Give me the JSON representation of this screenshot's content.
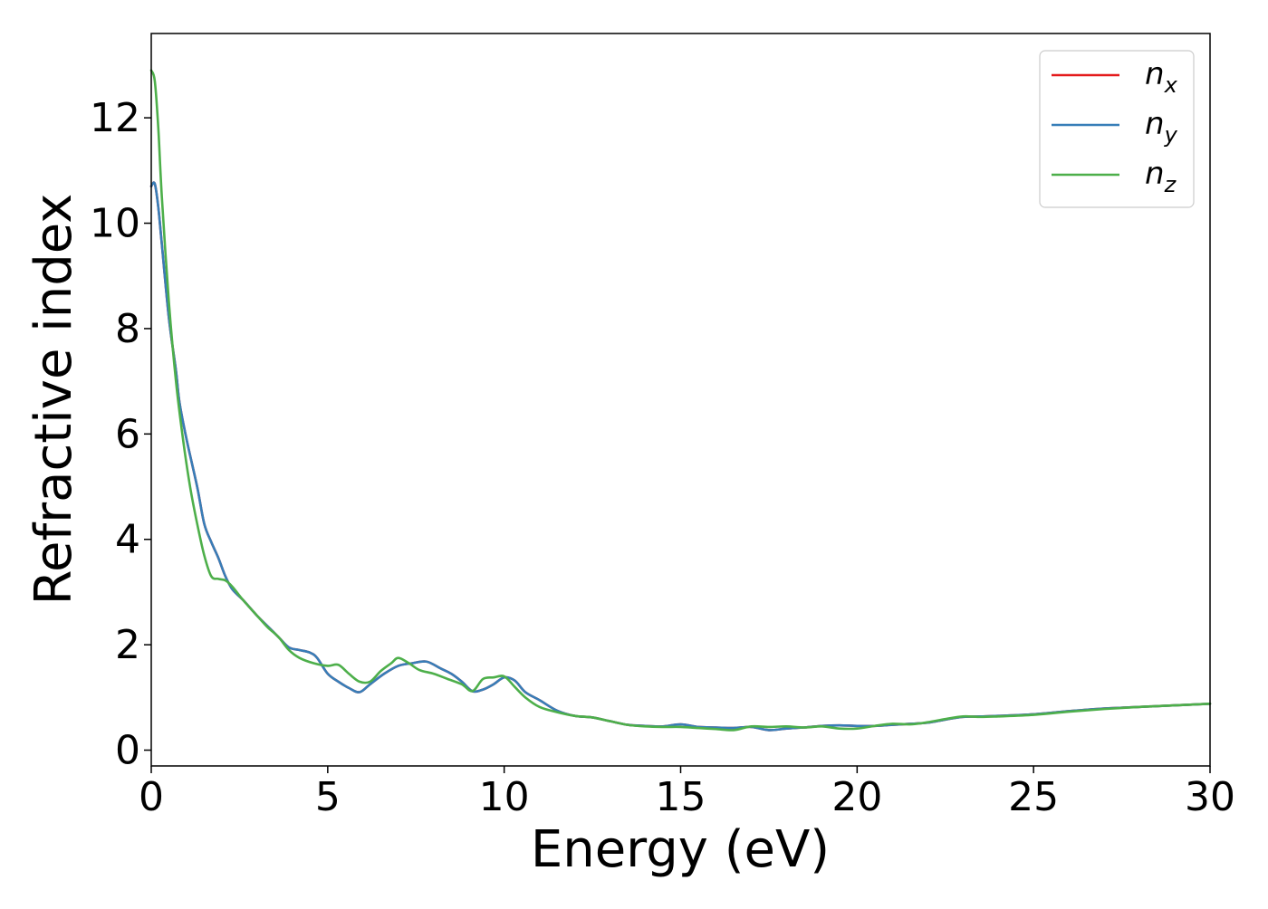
{
  "chart_data": {
    "type": "line",
    "title": "",
    "xlabel": "Energy (eV)",
    "ylabel": "Refractive index",
    "xlim": [
      0,
      30
    ],
    "ylim": [
      -0.3,
      13.6
    ],
    "xticks": [
      0,
      5,
      10,
      15,
      20,
      25,
      30
    ],
    "yticks": [
      0,
      2,
      4,
      6,
      8,
      10,
      12
    ],
    "grid": false,
    "legend_position": "top-right",
    "series": [
      {
        "name": "n_x",
        "legend_base": "n",
        "legend_sub": "x",
        "color": "#e41a1c",
        "x": [
          0,
          0.1,
          0.2,
          0.3,
          0.5,
          0.7,
          0.8,
          1.0,
          1.3,
          1.5,
          1.7,
          1.9,
          2.1,
          2.3,
          2.6,
          3.0,
          3.3,
          3.6,
          3.9,
          4.2,
          4.5,
          4.7,
          5.0,
          5.3,
          5.6,
          5.9,
          6.2,
          6.6,
          7.0,
          7.4,
          7.8,
          8.2,
          8.5,
          8.8,
          9.1,
          9.4,
          9.7,
          10.0,
          10.3,
          10.6,
          11.0,
          11.5,
          12.0,
          12.5,
          13.0,
          13.5,
          14.0,
          14.5,
          15.0,
          15.5,
          16.0,
          16.5,
          17.0,
          17.5,
          18.0,
          18.5,
          19.0,
          19.5,
          20.0,
          20.5,
          21.0,
          21.5,
          22.0,
          22.5,
          23.0,
          23.5,
          24.0,
          25.0,
          26.0,
          27.0,
          28.0,
          29.0,
          30.0
        ],
        "y": [
          10.7,
          10.75,
          10.3,
          9.6,
          8.2,
          7.2,
          6.6,
          5.9,
          5.0,
          4.3,
          3.95,
          3.65,
          3.3,
          3.05,
          2.85,
          2.55,
          2.35,
          2.15,
          1.95,
          1.9,
          1.85,
          1.75,
          1.45,
          1.3,
          1.18,
          1.1,
          1.25,
          1.45,
          1.6,
          1.65,
          1.68,
          1.55,
          1.45,
          1.3,
          1.12,
          1.15,
          1.25,
          1.38,
          1.32,
          1.1,
          0.95,
          0.75,
          0.65,
          0.62,
          0.55,
          0.48,
          0.46,
          0.45,
          0.49,
          0.44,
          0.43,
          0.42,
          0.44,
          0.38,
          0.41,
          0.43,
          0.46,
          0.47,
          0.46,
          0.46,
          0.48,
          0.5,
          0.52,
          0.58,
          0.63,
          0.64,
          0.65,
          0.68,
          0.74,
          0.79,
          0.82,
          0.85,
          0.88
        ]
      },
      {
        "name": "n_y",
        "legend_base": "n",
        "legend_sub": "y",
        "color": "#377eb8",
        "x": [
          0,
          0.1,
          0.2,
          0.3,
          0.5,
          0.7,
          0.8,
          1.0,
          1.3,
          1.5,
          1.7,
          1.9,
          2.1,
          2.3,
          2.6,
          3.0,
          3.3,
          3.6,
          3.9,
          4.2,
          4.5,
          4.7,
          5.0,
          5.3,
          5.6,
          5.9,
          6.2,
          6.6,
          7.0,
          7.4,
          7.8,
          8.2,
          8.5,
          8.8,
          9.1,
          9.4,
          9.7,
          10.0,
          10.3,
          10.6,
          11.0,
          11.5,
          12.0,
          12.5,
          13.0,
          13.5,
          14.0,
          14.5,
          15.0,
          15.5,
          16.0,
          16.5,
          17.0,
          17.5,
          18.0,
          18.5,
          19.0,
          19.5,
          20.0,
          20.5,
          21.0,
          21.5,
          22.0,
          22.5,
          23.0,
          23.5,
          24.0,
          25.0,
          26.0,
          27.0,
          28.0,
          29.0,
          30.0
        ],
        "y": [
          10.7,
          10.75,
          10.3,
          9.6,
          8.2,
          7.2,
          6.6,
          5.9,
          5.0,
          4.3,
          3.95,
          3.65,
          3.3,
          3.05,
          2.85,
          2.55,
          2.35,
          2.15,
          1.95,
          1.9,
          1.85,
          1.75,
          1.45,
          1.3,
          1.18,
          1.1,
          1.25,
          1.45,
          1.6,
          1.65,
          1.68,
          1.55,
          1.45,
          1.3,
          1.12,
          1.15,
          1.25,
          1.38,
          1.32,
          1.1,
          0.95,
          0.75,
          0.65,
          0.62,
          0.55,
          0.48,
          0.46,
          0.45,
          0.49,
          0.44,
          0.43,
          0.42,
          0.44,
          0.38,
          0.41,
          0.43,
          0.46,
          0.47,
          0.46,
          0.46,
          0.48,
          0.5,
          0.52,
          0.58,
          0.63,
          0.64,
          0.65,
          0.68,
          0.74,
          0.79,
          0.82,
          0.85,
          0.88
        ]
      },
      {
        "name": "n_z",
        "legend_base": "n",
        "legend_sub": "z",
        "color": "#4daf4a",
        "x": [
          0,
          0.1,
          0.2,
          0.3,
          0.5,
          0.7,
          0.9,
          1.1,
          1.3,
          1.5,
          1.7,
          1.9,
          2.1,
          2.3,
          2.6,
          3.0,
          3.3,
          3.6,
          3.9,
          4.2,
          4.6,
          5.0,
          5.3,
          5.6,
          5.9,
          6.2,
          6.5,
          6.8,
          7.0,
          7.3,
          7.6,
          8.0,
          8.4,
          8.8,
          9.1,
          9.4,
          9.7,
          10.0,
          10.3,
          10.6,
          11.0,
          11.5,
          12.0,
          12.5,
          13.0,
          13.5,
          14.0,
          14.5,
          15.0,
          15.5,
          16.0,
          16.5,
          17.0,
          17.5,
          18.0,
          18.5,
          19.0,
          19.5,
          20.0,
          20.5,
          21.0,
          21.5,
          22.0,
          22.5,
          23.0,
          23.5,
          24.0,
          25.0,
          26.0,
          27.0,
          28.0,
          29.0,
          30.0
        ],
        "y": [
          12.9,
          12.7,
          11.8,
          10.5,
          8.5,
          7.0,
          5.9,
          5.0,
          4.3,
          3.7,
          3.3,
          3.25,
          3.22,
          3.1,
          2.85,
          2.55,
          2.33,
          2.15,
          1.9,
          1.75,
          1.65,
          1.6,
          1.62,
          1.45,
          1.3,
          1.3,
          1.5,
          1.65,
          1.75,
          1.65,
          1.52,
          1.45,
          1.35,
          1.25,
          1.12,
          1.35,
          1.38,
          1.4,
          1.2,
          1.0,
          0.82,
          0.72,
          0.65,
          0.62,
          0.55,
          0.48,
          0.45,
          0.44,
          0.44,
          0.42,
          0.4,
          0.38,
          0.45,
          0.44,
          0.45,
          0.43,
          0.45,
          0.41,
          0.41,
          0.46,
          0.5,
          0.49,
          0.53,
          0.59,
          0.64,
          0.63,
          0.64,
          0.67,
          0.73,
          0.78,
          0.82,
          0.85,
          0.88
        ]
      }
    ]
  }
}
